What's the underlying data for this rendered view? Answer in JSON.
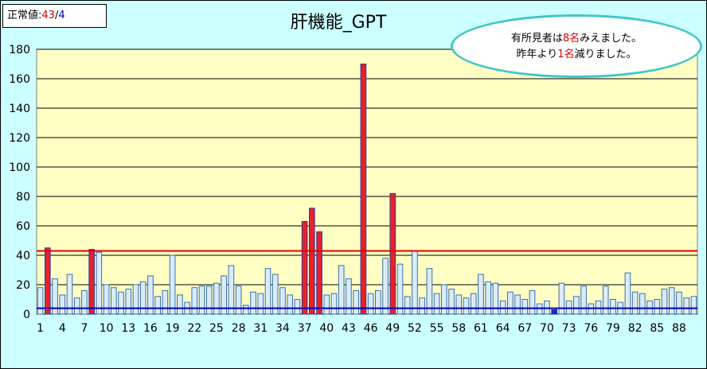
{
  "normal_box": {
    "label": "正常値:",
    "high": "43",
    "sep": "/",
    "low": "4"
  },
  "note": {
    "line1_pre": "有所見者は",
    "line1_num": "8名",
    "line1_post": "みえました。",
    "line2_pre": "昨年より",
    "line2_num": "1名",
    "line2_post": "減りました。"
  },
  "colors": {
    "normal_bar": "#d9ecff",
    "normal_bar_edge": "#3a6fa8",
    "high_bar": "#e8202c",
    "high_bar_edge": "#2a3aa0",
    "low_bar": "#1a2ab8",
    "upper_line": "#e00000",
    "lower_line": "#0000c8",
    "plot_bg": "#ffffc4",
    "frame_bg": "#ccffff"
  },
  "chart_data": {
    "type": "bar",
    "title": "肝機能_GPT",
    "ylim": [
      0,
      180
    ],
    "yticks": [
      0,
      20,
      40,
      60,
      80,
      100,
      120,
      140,
      160,
      180
    ],
    "xtick_labels": [
      "1",
      "4",
      "7",
      "10",
      "13",
      "16",
      "19",
      "22",
      "25",
      "28",
      "31",
      "34",
      "37",
      "40",
      "43",
      "46",
      "49",
      "52",
      "55",
      "58",
      "61",
      "64",
      "67",
      "70",
      "73",
      "76",
      "79",
      "82",
      "85",
      "88"
    ],
    "x": [
      1,
      2,
      3,
      4,
      5,
      6,
      7,
      8,
      9,
      10,
      11,
      12,
      13,
      14,
      15,
      16,
      17,
      18,
      19,
      20,
      21,
      22,
      23,
      24,
      25,
      26,
      27,
      28,
      29,
      30,
      31,
      32,
      33,
      34,
      35,
      36,
      37,
      38,
      39,
      40,
      41,
      42,
      43,
      44,
      45,
      46,
      47,
      48,
      49,
      50,
      51,
      52,
      53,
      54,
      55,
      56,
      57,
      58,
      59,
      60,
      61,
      62,
      63,
      64,
      65,
      66,
      67,
      68,
      69,
      70,
      71,
      72,
      73,
      74,
      75,
      76,
      77,
      78,
      79,
      80,
      81,
      82,
      83,
      84,
      85,
      86,
      87,
      88,
      89,
      90
    ],
    "values": [
      18,
      45,
      24,
      13,
      27,
      11,
      16,
      44,
      42,
      20,
      18,
      15,
      17,
      20,
      22,
      26,
      12,
      16,
      40,
      13,
      8,
      18,
      19,
      19,
      21,
      26,
      33,
      19,
      6,
      15,
      14,
      31,
      27,
      18,
      13,
      10,
      63,
      72,
      56,
      13,
      14,
      33,
      24,
      16,
      170,
      14,
      16,
      38,
      82,
      34,
      12,
      43,
      11,
      31,
      14,
      20,
      17,
      13,
      11,
      14,
      27,
      22,
      21,
      9,
      15,
      13,
      10,
      16,
      7,
      9,
      3,
      21,
      9,
      12,
      19,
      7,
      9,
      19,
      10,
      8,
      28,
      15,
      14,
      9,
      10,
      17,
      18,
      15,
      11,
      12
    ],
    "reference_lines": {
      "upper": 43,
      "lower": 4
    }
  }
}
